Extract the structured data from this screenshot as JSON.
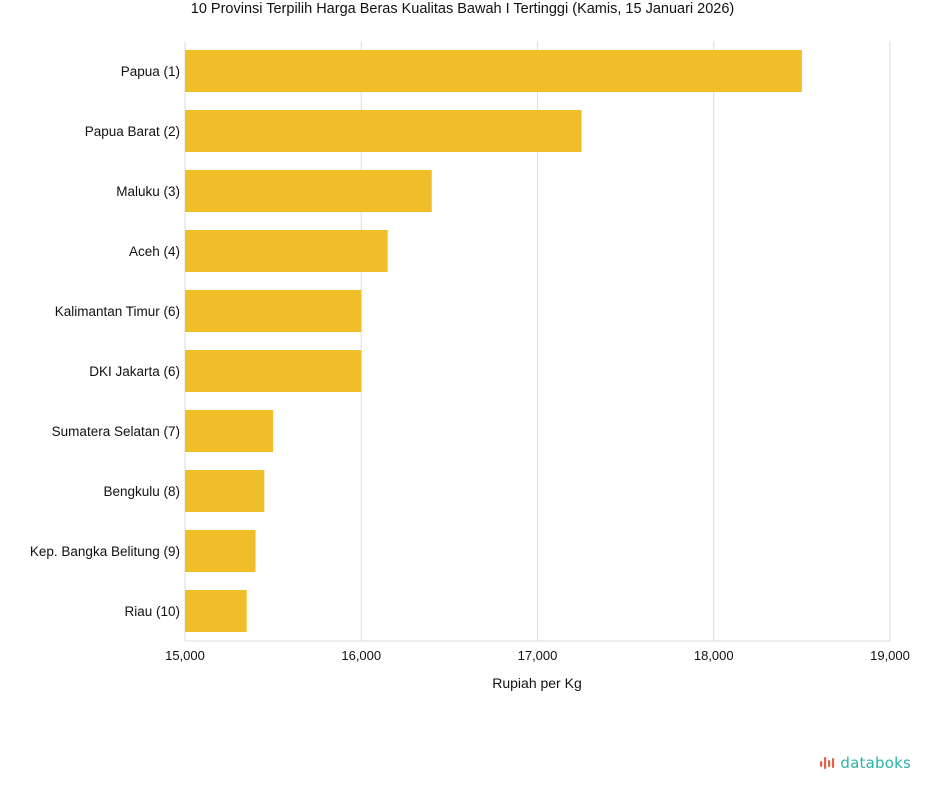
{
  "chart_data": {
    "type": "bar",
    "orientation": "horizontal",
    "title": "10 Provinsi Terpilih Harga Beras Kualitas Bawah I Tertinggi (Kamis, 15 Januari 2026)",
    "xlabel": "Rupiah per Kg",
    "ylabel": "",
    "xlim": [
      15000,
      19000
    ],
    "xticks": [
      15000,
      16000,
      17000,
      18000,
      19000
    ],
    "xtick_labels": [
      "15,000",
      "16,000",
      "17,000",
      "18,000",
      "19,000"
    ],
    "grid": "vertical",
    "categories": [
      "Papua (1)",
      "Papua Barat (2)",
      "Maluku (3)",
      "Aceh (4)",
      "Kalimantan Timur (6)",
      "DKI Jakarta (6)",
      "Sumatera Selatan (7)",
      "Bengkulu (8)",
      "Kep. Bangka Belitung (9)",
      "Riau (10)"
    ],
    "values": [
      18500,
      17250,
      16400,
      16150,
      16000,
      16000,
      15500,
      15450,
      15400,
      15350
    ],
    "bar_color": "#f0be28"
  },
  "brand": {
    "logo_text": "databoks",
    "logo_color": "#2ab3a6",
    "icon_color": "#e8624a"
  }
}
